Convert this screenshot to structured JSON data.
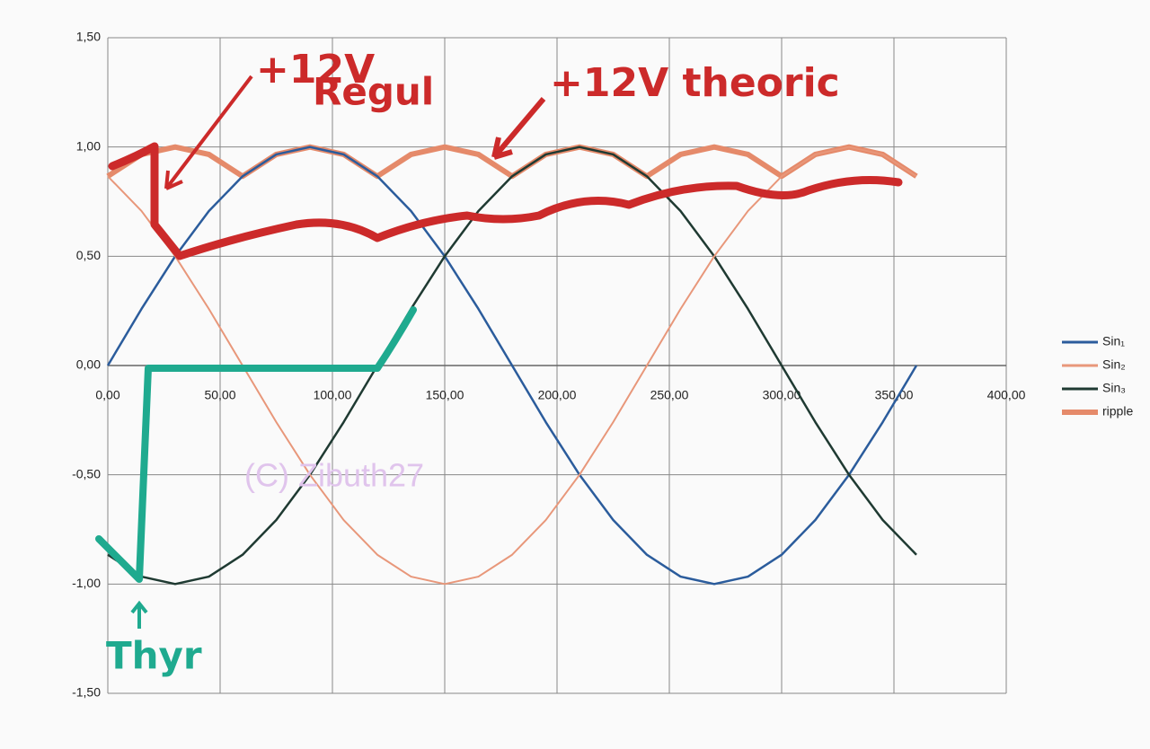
{
  "chart_data": {
    "type": "line",
    "x": [
      0,
      15,
      30,
      45,
      60,
      75,
      90,
      105,
      120,
      135,
      150,
      165,
      180,
      195,
      210,
      225,
      240,
      255,
      270,
      285,
      300,
      315,
      330,
      345,
      360
    ],
    "series": [
      {
        "name": "Sin₁",
        "color": "#2b5c9c",
        "width": 2.5,
        "values": [
          0,
          0.259,
          0.5,
          0.707,
          0.866,
          0.966,
          1,
          0.966,
          0.866,
          0.707,
          0.5,
          0.259,
          0,
          -0.259,
          -0.5,
          -0.707,
          -0.866,
          -0.966,
          -1,
          -0.966,
          -0.866,
          -0.707,
          -0.5,
          -0.259,
          0
        ]
      },
      {
        "name": "Sin₂",
        "color": "#e8977a",
        "width": 2,
        "values": [
          0.866,
          0.707,
          0.5,
          0.259,
          0,
          -0.259,
          -0.5,
          -0.707,
          -0.866,
          -0.966,
          -1,
          -0.966,
          -0.866,
          -0.707,
          -0.5,
          -0.259,
          0,
          0.259,
          0.5,
          0.707,
          0.866,
          0.966,
          1,
          0.966,
          0.866
        ]
      },
      {
        "name": "Sin₃",
        "color": "#1f3a32",
        "width": 2.5,
        "values": [
          -0.866,
          -0.966,
          -1,
          -0.966,
          -0.866,
          -0.707,
          -0.5,
          -0.259,
          0,
          0.259,
          0.5,
          0.707,
          0.866,
          0.966,
          1,
          0.966,
          0.866,
          0.707,
          0.5,
          0.259,
          0,
          -0.259,
          -0.5,
          -0.707,
          -0.866
        ]
      },
      {
        "name": "ripple",
        "color": "#e58a6a",
        "width": 6,
        "values": [
          0.866,
          0.966,
          1,
          0.966,
          0.866,
          0.966,
          1,
          0.966,
          0.866,
          0.966,
          1,
          0.966,
          0.866,
          0.966,
          1,
          0.966,
          0.866,
          0.966,
          1,
          0.966,
          0.866,
          0.966,
          1,
          0.966,
          0.866
        ]
      }
    ],
    "xlim": [
      0,
      400
    ],
    "xticks": [
      {
        "value": 0,
        "label": "0,00"
      },
      {
        "value": 50,
        "label": "50,00"
      },
      {
        "value": 100,
        "label": "100,00"
      },
      {
        "value": 150,
        "label": "150,00"
      },
      {
        "value": 200,
        "label": "200,00"
      },
      {
        "value": 250,
        "label": "250,00"
      },
      {
        "value": 300,
        "label": "300,00"
      },
      {
        "value": 350,
        "label": "350,00"
      },
      {
        "value": 400,
        "label": "400,00"
      }
    ],
    "ylim": [
      -1.5,
      1.5
    ],
    "yticks": [
      {
        "value": -1.5,
        "label": "-1,50"
      },
      {
        "value": -1,
        "label": "-1,00"
      },
      {
        "value": -0.5,
        "label": "-0,50"
      },
      {
        "value": 0,
        "label": "0,00"
      },
      {
        "value": 0.5,
        "label": "0,50"
      },
      {
        "value": 1,
        "label": "1,00"
      },
      {
        "value": 1.5,
        "label": "1,50"
      }
    ],
    "grid": true,
    "legend": "right",
    "annotations": [
      "+12V",
      "Regul",
      "+12V theoric",
      "Thyr",
      "(C) Zibuth27"
    ]
  }
}
